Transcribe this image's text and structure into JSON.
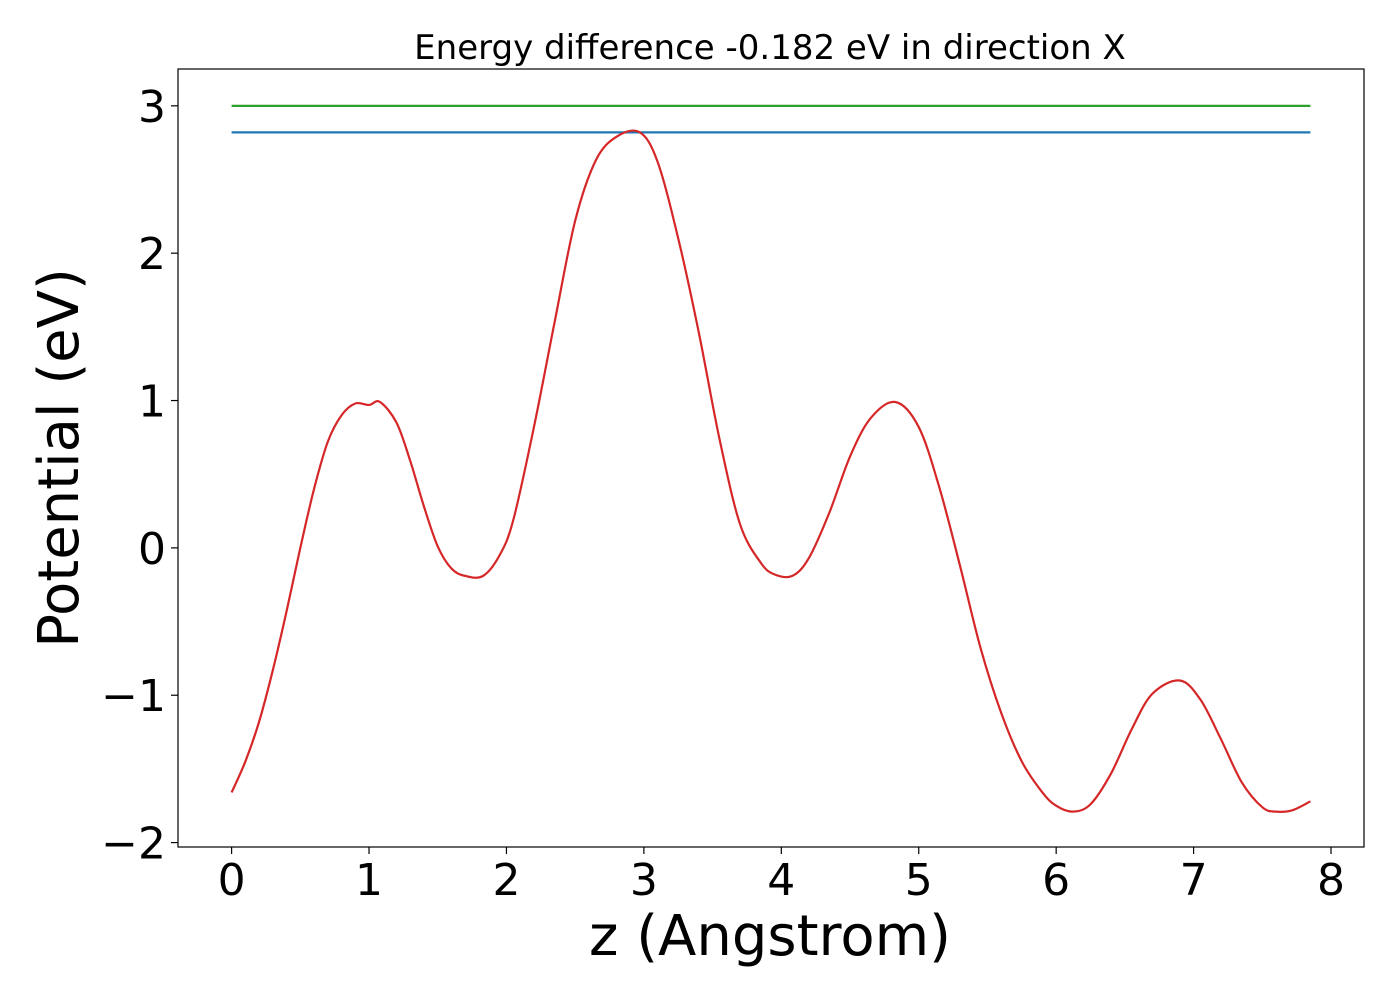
{
  "chart_data": {
    "type": "line",
    "title": "Energy difference -0.182 eV in direction X",
    "xlabel": "z (Angstrom)",
    "ylabel": "Potential (eV)",
    "xlim": [
      -0.39,
      8.24
    ],
    "ylim": [
      -2.03,
      3.25
    ],
    "x_ticks": [
      0,
      1,
      2,
      3,
      4,
      5,
      6,
      7,
      8
    ],
    "x_tick_labels": [
      "0",
      "1",
      "2",
      "3",
      "4",
      "5",
      "6",
      "7",
      "8"
    ],
    "y_ticks": [
      -2,
      -1,
      0,
      1,
      2,
      3
    ],
    "y_tick_labels": [
      "−2",
      "−1",
      "0",
      "1",
      "2",
      "3"
    ],
    "grid": false,
    "series": [
      {
        "color": "#2ca02c",
        "x": [
          0,
          7.85
        ],
        "y": [
          3.0,
          3.0
        ]
      },
      {
        "color": "#1f77b4",
        "x": [
          0,
          7.85
        ],
        "y": [
          2.82,
          2.82
        ]
      },
      {
        "color": "#d62728",
        "x": [
          0.0,
          0.1,
          0.2,
          0.3,
          0.4,
          0.5,
          0.6,
          0.7,
          0.8,
          0.9,
          1.0,
          1.08,
          1.2,
          1.3,
          1.4,
          1.5,
          1.6,
          1.7,
          1.83,
          1.95,
          2.05,
          2.2,
          2.35,
          2.5,
          2.65,
          2.8,
          2.97,
          3.1,
          3.25,
          3.4,
          3.55,
          3.7,
          3.85,
          3.95,
          4.08,
          4.2,
          4.35,
          4.5,
          4.65,
          4.83,
          5.0,
          5.15,
          5.3,
          5.45,
          5.6,
          5.75,
          5.9,
          6.0,
          6.12,
          6.25,
          6.4,
          6.55,
          6.7,
          6.9,
          7.05,
          7.2,
          7.35,
          7.5,
          7.6,
          7.72,
          7.85
        ],
        "y": [
          -1.66,
          -1.45,
          -1.18,
          -0.83,
          -0.43,
          0.0,
          0.4,
          0.72,
          0.9,
          0.98,
          0.97,
          0.99,
          0.85,
          0.59,
          0.28,
          0.01,
          -0.14,
          -0.19,
          -0.19,
          -0.05,
          0.19,
          0.82,
          1.53,
          2.22,
          2.63,
          2.79,
          2.82,
          2.62,
          2.1,
          1.46,
          0.74,
          0.16,
          -0.1,
          -0.18,
          -0.19,
          -0.07,
          0.24,
          0.62,
          0.88,
          0.99,
          0.82,
          0.41,
          -0.12,
          -0.68,
          -1.12,
          -1.45,
          -1.66,
          -1.75,
          -1.79,
          -1.74,
          -1.53,
          -1.23,
          -0.99,
          -0.9,
          -1.03,
          -1.3,
          -1.59,
          -1.76,
          -1.79,
          -1.78,
          -1.72
        ]
      }
    ]
  }
}
